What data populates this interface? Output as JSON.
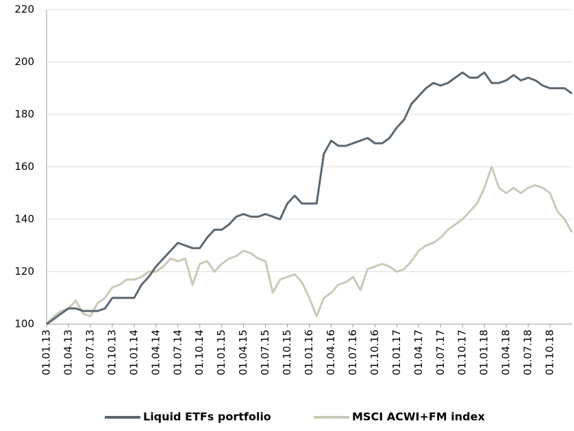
{
  "chart_data": {
    "type": "line",
    "categories": [
      "01.01.13",
      null,
      null,
      "01.04.13",
      null,
      null,
      "01.07.13",
      null,
      null,
      "01.10.13",
      null,
      null,
      "01.01.14",
      null,
      null,
      "01.04.14",
      null,
      null,
      "01.07.14",
      null,
      null,
      "01.10.14",
      null,
      null,
      "01.01.15",
      null,
      null,
      "01.04.15",
      null,
      null,
      "01.07.15",
      null,
      null,
      "01.10.15",
      null,
      null,
      "01.01.16",
      null,
      null,
      "01.04.16",
      null,
      null,
      "01.07.16",
      null,
      null,
      "01.10.16",
      null,
      null,
      "01.01.17",
      null,
      null,
      "01.04.17",
      null,
      null,
      "01.07.17",
      null,
      null,
      "01.10.17",
      null,
      null,
      "01.01.18",
      null,
      null,
      "01.04.18",
      null,
      null,
      "01.07.18",
      null,
      null,
      "01.10.18",
      null,
      null,
      null
    ],
    "series": [
      {
        "name": "Liquid ETFs portfolio",
        "color": "#5b6770",
        "values": [
          100,
          102,
          104,
          106,
          106,
          105,
          105,
          105,
          106,
          110,
          110,
          110,
          110,
          115,
          118,
          122,
          125,
          128,
          131,
          130,
          129,
          129,
          133,
          136,
          136,
          138,
          141,
          142,
          141,
          141,
          142,
          141,
          140,
          146,
          149,
          146,
          146,
          146,
          165,
          170,
          168,
          168,
          169,
          170,
          171,
          169,
          169,
          171,
          175,
          178,
          184,
          187,
          190,
          192,
          191,
          192,
          194,
          196,
          194,
          194,
          196,
          192,
          192,
          193,
          195,
          193,
          194,
          193,
          191,
          190,
          190,
          190,
          188
        ]
      },
      {
        "name": "MSCI ACWI+FM index",
        "color": "#c9c9b9",
        "values": [
          100,
          103,
          105,
          106,
          109,
          104,
          103,
          108,
          110,
          114,
          115,
          117,
          117,
          118,
          120,
          120,
          122,
          125,
          124,
          125,
          115,
          123,
          124,
          120,
          123,
          125,
          126,
          128,
          127,
          125,
          124,
          112,
          117,
          118,
          119,
          116,
          110,
          103,
          110,
          112,
          115,
          116,
          118,
          113,
          121,
          122,
          123,
          122,
          120,
          121,
          124,
          128,
          130,
          131,
          133,
          136,
          138,
          140,
          143,
          146,
          152,
          160,
          152,
          150,
          152,
          150,
          152,
          153,
          152,
          150,
          143,
          140,
          135
        ]
      }
    ],
    "ylim": [
      100,
      220
    ],
    "yticks": [
      100,
      120,
      140,
      160,
      180,
      200,
      220
    ],
    "grid": true,
    "legend": "bottom"
  }
}
